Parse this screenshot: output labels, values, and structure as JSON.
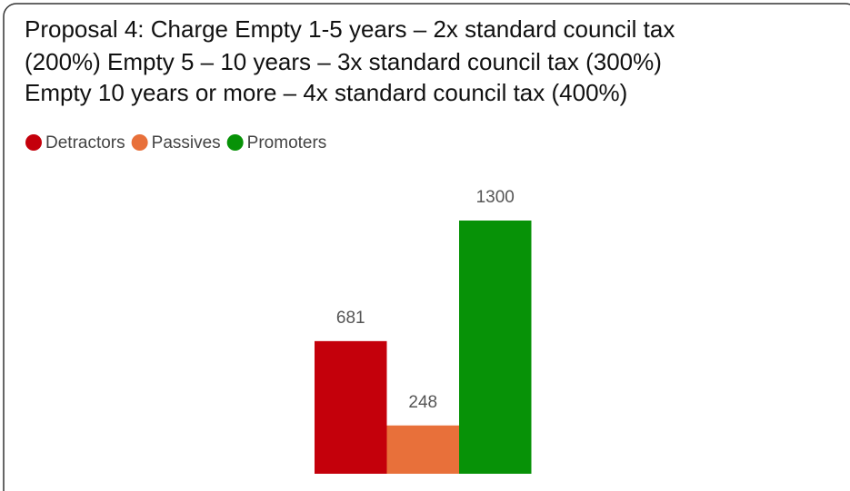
{
  "chart_data": {
    "type": "bar",
    "title": [
      "Proposal 4: Charge Empty 1-5 years – 2x standard council tax",
      "(200%) Empty 5 – 10 years – 3x standard council tax (300%)",
      "Empty 10 years or more – 4x standard council tax (400%)"
    ],
    "series": [
      {
        "name": "Detractors",
        "color": "#c4000b",
        "values": [
          681
        ]
      },
      {
        "name": "Passives",
        "color": "#e8703a",
        "values": [
          248
        ]
      },
      {
        "name": "Promoters",
        "color": "#079207",
        "values": [
          1300
        ]
      }
    ]
  }
}
